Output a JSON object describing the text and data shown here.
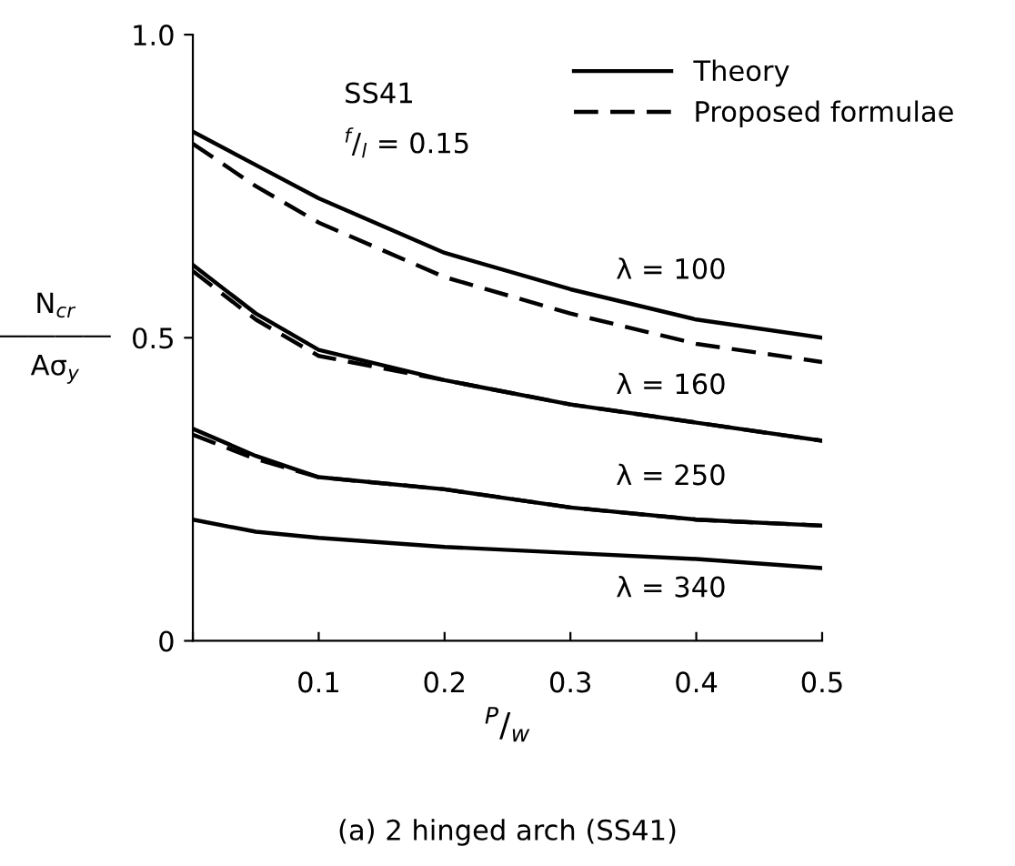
{
  "chart_data": {
    "type": "line",
    "xlabel": "$^{P}$/$_{w}$",
    "ylabel": "N$_{cr}$\n――――\nAσ$_{y}$",
    "x": [
      0,
      0.05,
      0.1,
      0.2,
      0.3,
      0.4,
      0.5
    ],
    "series": [
      {
        "name": "Theory",
        "color": "#000000",
        "line_style": "solid",
        "values": [
          0.84,
          0.785,
          0.73,
          0.64,
          0.58,
          0.53,
          0.5
        ]
      },
      {
        "name": "Proposed formulae",
        "color": "#000000",
        "line_style": "dashed",
        "values": [
          0.82,
          0.75,
          0.69,
          0.6,
          0.54,
          0.49,
          0.46
        ]
      },
      {
        "color": "#000000",
        "line_style": "solid",
        "values": [
          0.62,
          0.54,
          0.48,
          0.43,
          0.39,
          0.36,
          0.33
        ]
      },
      {
        "color": "#000000",
        "line_style": "dashed",
        "values": [
          0.61,
          0.53,
          0.47,
          0.43,
          0.39,
          0.36,
          0.33
        ]
      },
      {
        "color": "#000000",
        "line_style": "solid",
        "values": [
          0.35,
          0.305,
          0.27,
          0.25,
          0.22,
          0.2,
          0.19
        ]
      },
      {
        "color": "#000000",
        "line_style": "dashed",
        "values": [
          0.34,
          0.3,
          0.27,
          0.25,
          0.22,
          0.2,
          0.19
        ]
      },
      {
        "color": "#000000",
        "line_style": "solid",
        "values": [
          0.2,
          0.18,
          0.17,
          0.155,
          0.145,
          0.135,
          0.12
        ]
      }
    ],
    "xlim": [
      0,
      0.5
    ],
    "ylim": [
      0,
      1.0
    ],
    "xticks": [
      {
        "value": 0,
        "label": null
      },
      0.1,
      0.2,
      0.3,
      0.4,
      0.5
    ],
    "yticks": [
      0,
      0.5,
      {
        "value": 1.0,
        "label": "1.0"
      }
    ],
    "grid": false,
    "legend": "top right",
    "marker": "none",
    "annotations": [
      "SS41",
      "$^{f}$/$_{l}$ = 0.15",
      "λ = 100",
      "λ = 160",
      "λ = 250",
      "λ = 340",
      "(a) 2 hinged arch (SS41)"
    ]
  }
}
